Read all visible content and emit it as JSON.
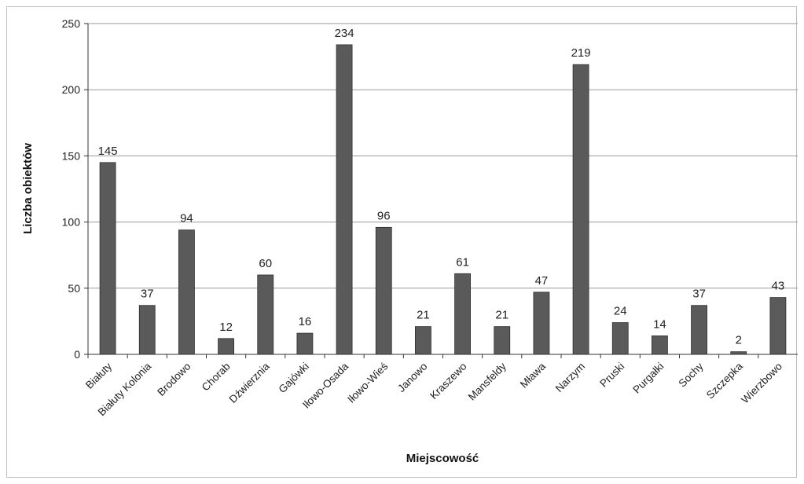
{
  "chart_data": {
    "type": "bar",
    "title": "",
    "xlabel": "Miejscowość",
    "ylabel": "Liczba obiektów",
    "ylim": [
      0,
      250
    ],
    "yticks": [
      0,
      50,
      100,
      150,
      200,
      250
    ],
    "grid": true,
    "legend": "none",
    "bar_color": "#5a5a5a",
    "categories": [
      "Białuty",
      "Białuty Kolonia",
      "Brodowo",
      "Chorab",
      "Dźwierznia",
      "Gajówki",
      "Iłowo-Osada",
      "Iłowo-Wieś",
      "Janowo",
      "Kraszewo",
      "Mansfeldy",
      "Mława",
      "Narzym",
      "Pruski",
      "Purgałki",
      "Sochy",
      "Szczepka",
      "Wierzbowo"
    ],
    "values": [
      145,
      37,
      94,
      12,
      60,
      16,
      234,
      96,
      21,
      61,
      21,
      47,
      219,
      24,
      14,
      37,
      2,
      43
    ]
  }
}
